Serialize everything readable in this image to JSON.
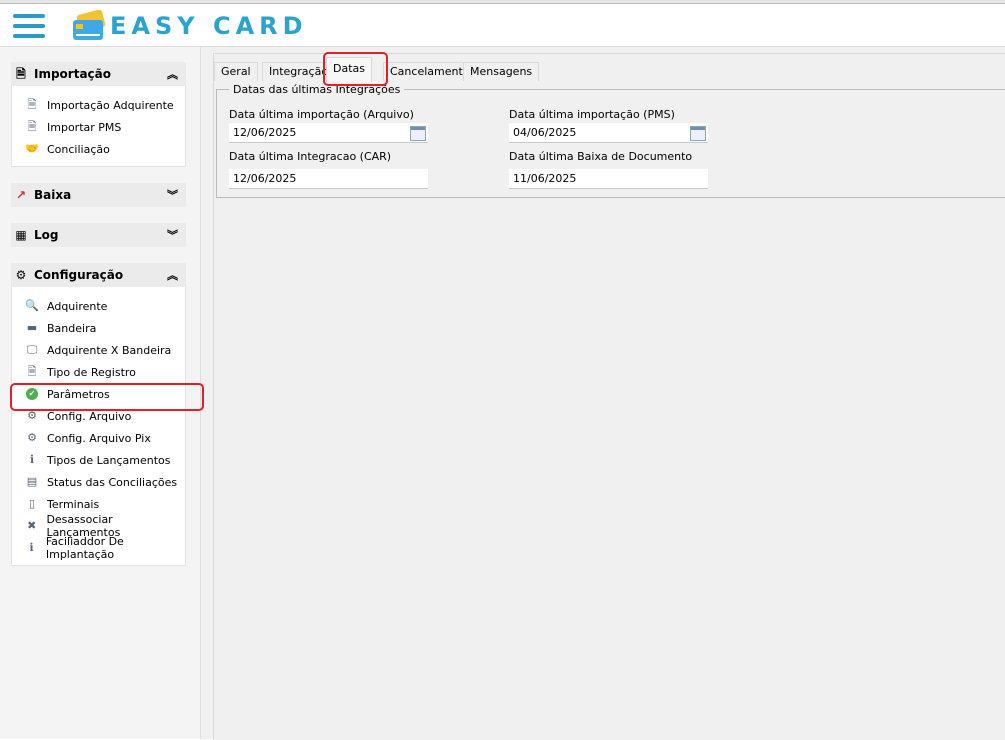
{
  "app": {
    "logo_text": "EASY CARD"
  },
  "sidebar": {
    "panels": [
      {
        "title": "Importação",
        "icon": "document-icon",
        "expanded": true,
        "items": [
          {
            "label": "Importação Adquirente",
            "icon": "document-icon"
          },
          {
            "label": "Importar PMS",
            "icon": "document-icon"
          },
          {
            "label": "Conciliação",
            "icon": "handshake-icon"
          }
        ]
      },
      {
        "title": "Baixa",
        "icon": "chart-check-icon",
        "expanded": false,
        "items": []
      },
      {
        "title": "Log",
        "icon": "calculator-icon",
        "expanded": false,
        "items": []
      },
      {
        "title": "Configuração",
        "icon": "gear-icon",
        "expanded": true,
        "items": [
          {
            "label": "Adquirente",
            "icon": "search-icon"
          },
          {
            "label": "Bandeira",
            "icon": "card-icon"
          },
          {
            "label": "Adquirente X Bandeira",
            "icon": "monitor-icon"
          },
          {
            "label": "Tipo de Registro",
            "icon": "document-icon"
          },
          {
            "label": "Parâmetros",
            "icon": "check-circle-icon"
          },
          {
            "label": "Config. Arquivo",
            "icon": "file-gear-icon"
          },
          {
            "label": "Config. Arquivo Pix",
            "icon": "file-gear-icon"
          },
          {
            "label": "Tipos de Lançamentos",
            "icon": "monitor-info-icon"
          },
          {
            "label": "Status das Conciliações",
            "icon": "status-icon"
          },
          {
            "label": "Terminais",
            "icon": "terminal-icon"
          },
          {
            "label": "Desassociar Lançamentos",
            "icon": "document-remove-icon"
          },
          {
            "label": "Faciliaddor De Implantação",
            "icon": "monitor-info-icon"
          }
        ]
      }
    ]
  },
  "tabs": [
    {
      "label": "Geral"
    },
    {
      "label": "Integração"
    },
    {
      "label": "Datas",
      "active": true
    },
    {
      "label": "Cancelamento"
    },
    {
      "label": "Mensagens"
    }
  ],
  "group": {
    "title": "Datas das últimas Integrações",
    "fields": [
      {
        "label": "Data última importação (Arquivo)",
        "value": "12/06/2025",
        "calendar": true
      },
      {
        "label": "Data última importação (PMS)",
        "value": "04/06/2025",
        "calendar": true
      },
      {
        "label": "Data última Integracao (CAR)",
        "value": "12/06/2025",
        "calendar": false
      },
      {
        "label": "Data última Baixa de Documento",
        "value": "11/06/2025",
        "calendar": false
      }
    ]
  },
  "colors": {
    "accent": "#2aa3cf",
    "highlight": "#e0202a"
  }
}
